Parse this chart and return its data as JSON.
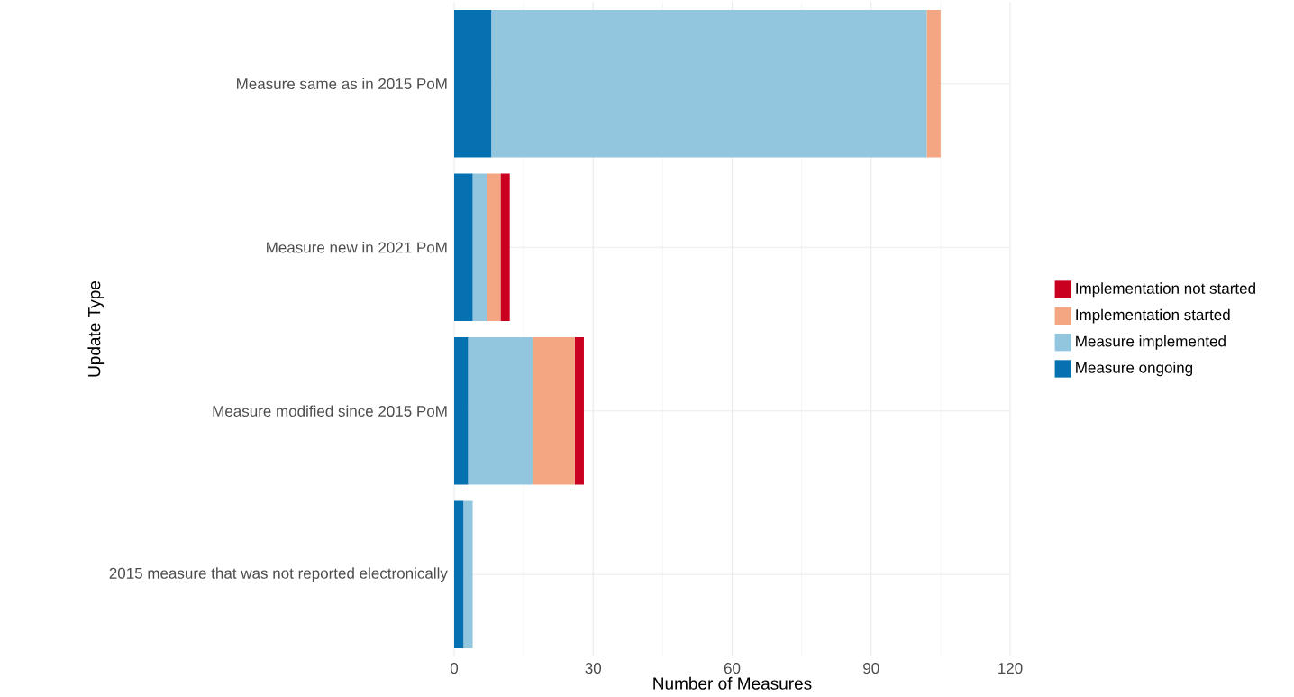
{
  "chart_data": {
    "type": "bar",
    "orientation": "horizontal",
    "stacked": true,
    "xlabel": "Number of Measures",
    "ylabel": "Update Type",
    "categories": [
      "Measure same as in 2015 PoM",
      "Measure new in 2021 PoM",
      "Measure modified since 2015 PoM",
      "2015 measure that was not reported electronically"
    ],
    "series": [
      {
        "name": "Measure ongoing",
        "color": "#0571b0",
        "values": [
          8,
          4,
          3,
          2
        ]
      },
      {
        "name": "Measure implemented",
        "color": "#92c5de",
        "values": [
          94,
          3,
          14,
          2
        ]
      },
      {
        "name": "Implementation started",
        "color": "#f4a582",
        "values": [
          3,
          3,
          9,
          0
        ]
      },
      {
        "name": "Implementation not started",
        "color": "#ca0020",
        "values": [
          0,
          2,
          2,
          0
        ]
      }
    ],
    "xlim": [
      0,
      120
    ],
    "xticks": [
      0,
      30,
      60,
      90,
      120
    ],
    "grid": true,
    "legend": "right"
  }
}
